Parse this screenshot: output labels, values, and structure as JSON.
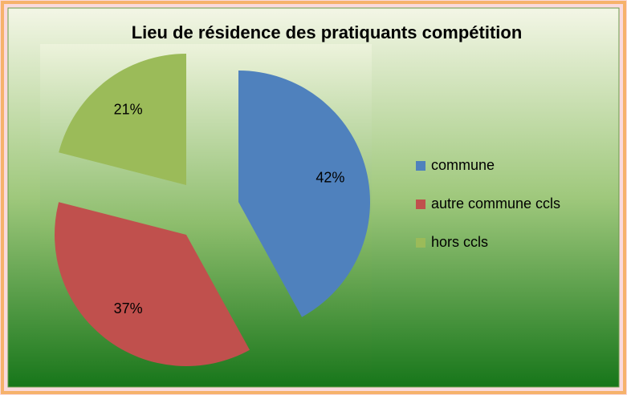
{
  "chart_data": {
    "type": "pie",
    "title": "Lieu de résidence des pratiquants compétition",
    "categories": [
      "commune",
      "autre commune ccls",
      "hors ccls"
    ],
    "values": [
      42,
      37,
      21
    ],
    "value_labels": [
      "42%",
      "37%",
      "21%"
    ],
    "colors": [
      "#4f81bd",
      "#c0504d",
      "#9bbb59"
    ],
    "legend": "right"
  }
}
